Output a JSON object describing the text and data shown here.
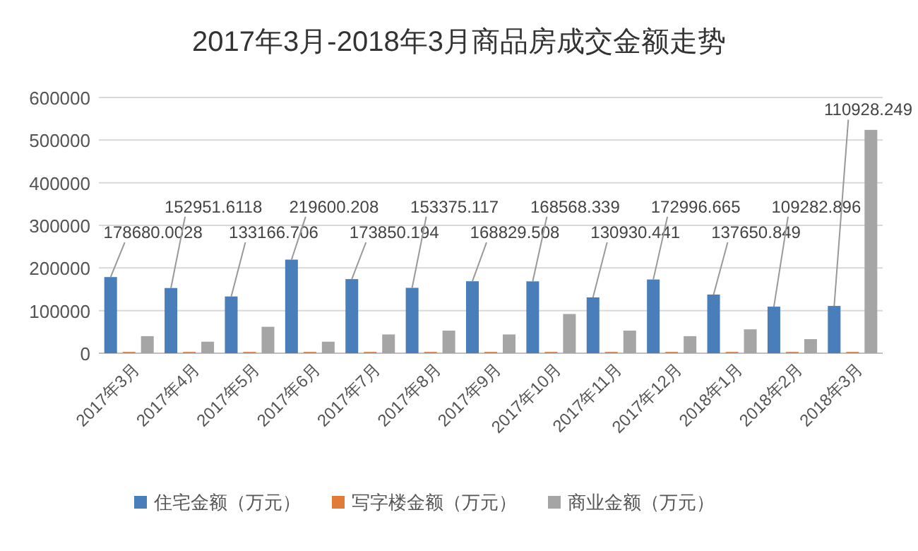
{
  "chart_data": {
    "type": "bar",
    "title": "2017年3月-2018年3月商品房成交金额走势",
    "categories": [
      "2017年3月",
      "2017年4月",
      "2017年5月",
      "2017年6月",
      "2017年7月",
      "2017年8月",
      "2017年9月",
      "2017年10月",
      "2017年11月",
      "2017年12月",
      "2018年1月",
      "2018年2月",
      "2018年3月"
    ],
    "series": [
      {
        "name": "住宅金额（万元）",
        "color": "#4a7ebb",
        "values": [
          178680.0028,
          152951.6118,
          133166.706,
          219600.208,
          173850.194,
          153375.117,
          168829.508,
          168568.339,
          130930.441,
          172996.665,
          137650.849,
          109282.896,
          110928.249
        ],
        "value_labels": [
          "178680.0028",
          "152951.6118",
          "133166.706",
          "219600.208",
          "173850.194",
          "153375.117",
          "168829.508",
          "168568.339",
          "130930.441",
          "172996.665",
          "137650.849",
          "109282.896",
          "110928.249"
        ]
      },
      {
        "name": "写字楼金额（万元）",
        "color": "#e07b39",
        "values": [
          3000,
          3000,
          3000,
          3000,
          3000,
          3000,
          3000,
          3000,
          3000,
          3000,
          3000,
          3000,
          3000
        ]
      },
      {
        "name": "商业金额（万元）",
        "color": "#a5a5a5",
        "values": [
          40000,
          27000,
          62000,
          27000,
          44000,
          53000,
          44000,
          92000,
          53000,
          40000,
          56000,
          33000,
          524000
        ]
      }
    ],
    "ylim": [
      0,
      600000
    ],
    "yticks": [
      0,
      100000,
      200000,
      300000,
      400000,
      500000,
      600000
    ],
    "grid": "y",
    "legend": "bottom"
  }
}
